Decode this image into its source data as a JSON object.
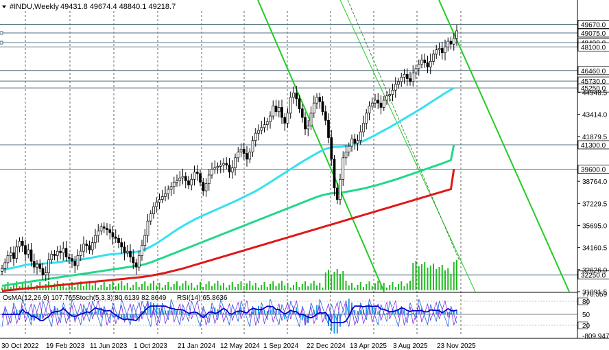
{
  "header": {
    "symbol": "#INDU,Weekly",
    "ohlc": "49431.8 49674.4 48840.1 49218.7"
  },
  "colors": {
    "ma_fast": "#35e1f0",
    "ma_mid": "#22d88a",
    "ma_slow": "#e01818",
    "channel": "#22cc22",
    "volume": "#22bb22",
    "macd_hist": "#1e9be8",
    "macd_signal": "#0000cc",
    "stoch_main": "#1e5fd8",
    "stoch_signal": "#8a2be2",
    "level_line": "#506f80"
  },
  "chart_data": {
    "type": "line",
    "time_labels": [
      "30 Oct 2022",
      "19 Feb 2023",
      "11 Jun 2023",
      "1 Oct 2023",
      "21 Jan 2024",
      "12 May 2024",
      "1 Sep 2024",
      "22 Dec 2024",
      "13 Apr 2025",
      "3 Aug 2025",
      "23 Nov 2025"
    ],
    "price_ticks": [
      "49670.0",
      "49075.0",
      "48400.0",
      "48100.0",
      "46460.0",
      "45730.0",
      "45250.0",
      "44948.5",
      "43414.0",
      "41879.5",
      "41300.0",
      "39600.0",
      "38764.0",
      "37229.5",
      "35695.0",
      "34160.5",
      "32626.0",
      "32250.0",
      "31091.5"
    ],
    "ylim": [
      31091.5,
      50600
    ],
    "levels": [
      {
        "value": 49670,
        "label": "49670.0"
      },
      {
        "value": 49075,
        "label": "49075.0"
      },
      {
        "value": 48400,
        "label": "48400.0"
      },
      {
        "value": 48100,
        "label": "48100.0"
      },
      {
        "value": 46460,
        "label": "46460.0"
      },
      {
        "value": 45730,
        "label": "45730.0"
      },
      {
        "value": 45250,
        "label": "45250.0"
      },
      {
        "value": 41300,
        "label": "41300.0"
      },
      {
        "value": 39600,
        "label": "39600.0"
      },
      {
        "value": 32250,
        "label": "32250.0"
      }
    ],
    "close": [
      32700,
      33100,
      33600,
      33800,
      33400,
      34200,
      34600,
      34300,
      33700,
      34000,
      33200,
      32800,
      33000,
      32700,
      32250,
      32400,
      33300,
      33700,
      33600,
      33900,
      33800,
      34100,
      33500,
      33400,
      33200,
      32900,
      33600,
      33900,
      34400,
      34300,
      34000,
      34500,
      35000,
      35300,
      35600,
      35500,
      35400,
      35200,
      34900,
      34800,
      34500,
      34200,
      33800,
      33900,
      33500,
      33100,
      32800,
      33600,
      34300,
      35000,
      36000,
      36500,
      37000,
      37300,
      37500,
      37700,
      37900,
      38200,
      38400,
      38700,
      38800,
      39000,
      39100,
      38800,
      38500,
      38900,
      39400,
      39300,
      38700,
      38100,
      38600,
      39200,
      39600,
      39700,
      39800,
      39900,
      40000,
      39900,
      39400,
      39700,
      40400,
      40800,
      41000,
      40700,
      40300,
      40800,
      41600,
      42100,
      42300,
      42500,
      42700,
      42900,
      43300,
      44000,
      43600,
      43900,
      43200,
      42800,
      43500,
      44600,
      44900,
      44500,
      43800,
      43200,
      42400,
      42600,
      43500,
      44200,
      44600,
      44300,
      43600,
      43000,
      41800,
      40300,
      38300,
      37500,
      38900,
      40400,
      40800,
      41200,
      41700,
      41400,
      41600,
      42200,
      42800,
      43500,
      44000,
      44200,
      44400,
      44200,
      43900,
      44400,
      44700,
      44800,
      45100,
      45500,
      45700,
      46000,
      46200,
      45900,
      45700,
      46300,
      46600,
      46900,
      47200,
      47000,
      46700,
      47100,
      47600,
      47900,
      48000,
      47700,
      48100,
      48500,
      48300,
      48700,
      49219
    ],
    "ma_fast": [
      32600,
      32640,
      32680,
      32720,
      32760,
      32800,
      32850,
      32900,
      32940,
      32980,
      33000,
      33010,
      33020,
      33030,
      33040,
      33050,
      33070,
      33090,
      33110,
      33130,
      33160,
      33190,
      33220,
      33240,
      33260,
      33280,
      33300,
      33330,
      33360,
      33390,
      33420,
      33460,
      33500,
      33540,
      33580,
      33620,
      33650,
      33680,
      33700,
      33720,
      33740,
      33750,
      33760,
      33780,
      33800,
      33830,
      33860,
      33900,
      33960,
      34030,
      34120,
      34220,
      34330,
      34450,
      34580,
      34710,
      34850,
      34990,
      35130,
      35270,
      35400,
      35530,
      35650,
      35770,
      35880,
      35990,
      36100,
      36200,
      36300,
      36390,
      36480,
      36570,
      36660,
      36750,
      36840,
      36930,
      37020,
      37110,
      37200,
      37290,
      37380,
      37480,
      37580,
      37680,
      37780,
      37880,
      37980,
      38080,
      38200,
      38320,
      38440,
      38570,
      38700,
      38830,
      38960,
      39090,
      39220,
      39350,
      39480,
      39610,
      39740,
      39870,
      40000,
      40120,
      40240,
      40360,
      40480,
      40600,
      40710,
      40820,
      40920,
      41010,
      41080,
      41120,
      41140,
      41150,
      41160,
      41180,
      41210,
      41250,
      41300,
      41360,
      41420,
      41490,
      41570,
      41660,
      41760,
      41860,
      41970,
      42080,
      42190,
      42300,
      42410,
      42520,
      42640,
      42760,
      42880,
      43000,
      43120,
      43240,
      43360,
      43480,
      43600,
      43720,
      43850,
      43980,
      44110,
      44240,
      44370,
      44500,
      44630,
      44760,
      44890,
      45010,
      45130,
      45250
    ],
    "ma_mid": [
      31500,
      31530,
      31560,
      31590,
      31620,
      31650,
      31680,
      31710,
      31740,
      31770,
      31800,
      31830,
      31860,
      31890,
      31920,
      31950,
      31980,
      32010,
      32040,
      32070,
      32100,
      32130,
      32160,
      32190,
      32220,
      32250,
      32280,
      32310,
      32340,
      32370,
      32400,
      32430,
      32460,
      32490,
      32520,
      32550,
      32580,
      32610,
      32640,
      32670,
      32700,
      32730,
      32760,
      32790,
      32820,
      32850,
      32880,
      32910,
      32950,
      33000,
      33060,
      33130,
      33200,
      33280,
      33360,
      33440,
      33520,
      33600,
      33680,
      33760,
      33840,
      33920,
      34000,
      34080,
      34160,
      34240,
      34320,
      34400,
      34480,
      34560,
      34640,
      34720,
      34800,
      34880,
      34960,
      35040,
      35120,
      35200,
      35280,
      35360,
      35440,
      35520,
      35600,
      35680,
      35760,
      35840,
      35920,
      36000,
      36080,
      36160,
      36240,
      36320,
      36400,
      36480,
      36560,
      36640,
      36720,
      36800,
      36880,
      36960,
      37040,
      37120,
      37200,
      37280,
      37360,
      37440,
      37520,
      37600,
      37670,
      37740,
      37800,
      37850,
      37890,
      37920,
      37940,
      37960,
      37980,
      38000,
      38030,
      38060,
      38100,
      38140,
      38180,
      38220,
      38260,
      38310,
      38360,
      38410,
      38460,
      38520,
      38580,
      38640,
      38700,
      38760,
      38820,
      38880,
      38950,
      39020,
      39090,
      39160,
      39230,
      39300,
      39370,
      39440,
      39510,
      39580,
      39650,
      39720,
      39790,
      39860,
      39930,
      40000,
      40080,
      40160,
      40240,
      41300
    ],
    "ma_slow": [
      31150,
      31170,
      31190,
      31210,
      31230,
      31250,
      31270,
      31290,
      31310,
      31330,
      31350,
      31370,
      31390,
      31410,
      31430,
      31450,
      31470,
      31490,
      31510,
      31530,
      31550,
      31570,
      31590,
      31610,
      31630,
      31650,
      31670,
      31690,
      31710,
      31730,
      31750,
      31770,
      31790,
      31810,
      31830,
      31850,
      31870,
      31890,
      31910,
      31930,
      31950,
      31970,
      31990,
      32010,
      32030,
      32050,
      32070,
      32090,
      32110,
      32140,
      32170,
      32200,
      32240,
      32280,
      32320,
      32360,
      32400,
      32450,
      32500,
      32550,
      32600,
      32650,
      32700,
      32760,
      32820,
      32880,
      32940,
      33000,
      33060,
      33120,
      33180,
      33240,
      33300,
      33360,
      33420,
      33480,
      33540,
      33600,
      33660,
      33720,
      33780,
      33840,
      33900,
      33960,
      34020,
      34080,
      34140,
      34200,
      34260,
      34320,
      34380,
      34440,
      34500,
      34560,
      34620,
      34680,
      34740,
      34800,
      34860,
      34920,
      34980,
      35040,
      35100,
      35160,
      35220,
      35280,
      35340,
      35400,
      35460,
      35520,
      35580,
      35640,
      35700,
      35760,
      35820,
      35880,
      35940,
      36000,
      36060,
      36120,
      36180,
      36240,
      36300,
      36360,
      36420,
      36480,
      36540,
      36600,
      36660,
      36720,
      36780,
      36840,
      36900,
      36960,
      37020,
      37080,
      37140,
      37200,
      37260,
      37320,
      37380,
      37440,
      37500,
      37560,
      37620,
      37680,
      37740,
      37800,
      37860,
      37920,
      37980,
      38040,
      38100,
      38160,
      38220,
      39600
    ],
    "indicator_labels": {
      "macd": "OsMA(12,26,9) 107.765",
      "stoch": "Stoch(5,3,3) 80.6139 82.8649",
      "rsi": "RSI(14) 65.8636"
    },
    "indicator_ticks": [
      "770.559",
      "80",
      "50",
      "20",
      "-809.947"
    ],
    "indicator_ylim": [
      -809.947,
      770.559
    ]
  }
}
